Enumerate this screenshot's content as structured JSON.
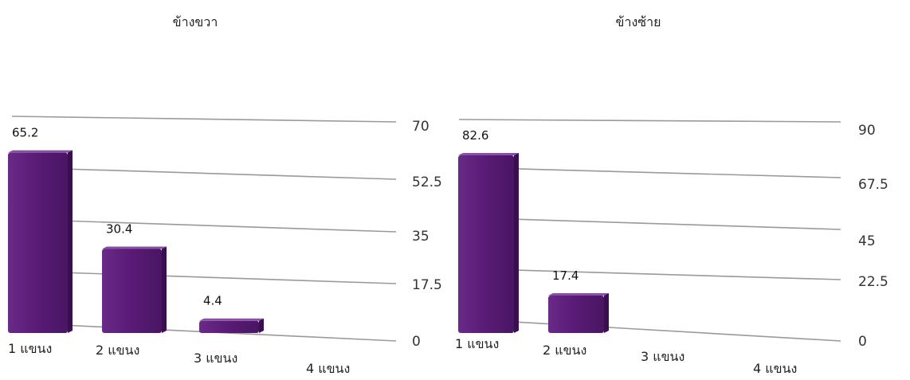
{
  "colors": {
    "bar_front": "#5a1c77",
    "bar_top": "#8a4fa6",
    "bar_side": "#3a0f50",
    "gridline": "#9a9a9a"
  },
  "chart_data": [
    {
      "type": "bar",
      "title": "ข้างขวา",
      "categories": [
        "1 แขนง",
        "2 แขนง",
        "3 แขนง",
        "4 แขนง"
      ],
      "values": [
        65.2,
        30.4,
        4.4,
        null
      ],
      "value_labels": [
        "65.2",
        "30.4",
        "4.4",
        ""
      ],
      "yticks": [
        "0",
        "17.5",
        "35",
        "52.5",
        "70"
      ],
      "ylim": [
        0,
        70
      ],
      "grid": true,
      "xlabel": "",
      "ylabel": ""
    },
    {
      "type": "bar",
      "title": "ข้างซ้าย",
      "categories": [
        "1 แขนง",
        "2 แขนง",
        "3 แขนง",
        "4 แขนง"
      ],
      "values": [
        82.6,
        17.4,
        null,
        null
      ],
      "value_labels": [
        "82.6",
        "17.4",
        "",
        ""
      ],
      "yticks": [
        "0",
        "22.5",
        "45",
        "67.5",
        "90"
      ],
      "ylim": [
        0,
        90
      ],
      "grid": true,
      "xlabel": "",
      "ylabel": ""
    }
  ]
}
